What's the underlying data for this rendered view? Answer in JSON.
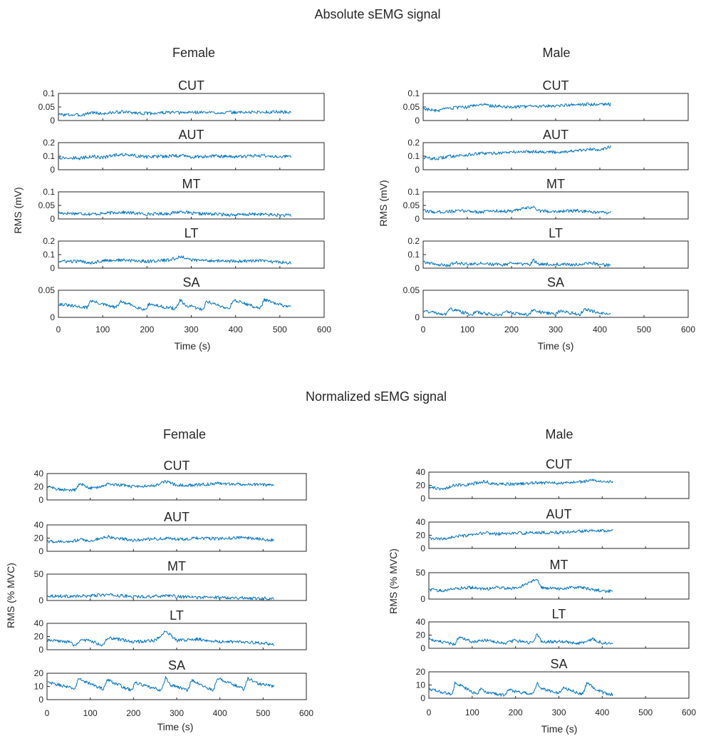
{
  "sections": [
    {
      "title": "Absolute sEMG signal",
      "ylabel": "RMS (mV)",
      "xlabel": "Time (s)",
      "xticks": [
        "0",
        "100",
        "200",
        "300",
        "400",
        "500",
        "600"
      ],
      "groups": [
        {
          "title": "Female",
          "panels": [
            {
              "title": "CUT",
              "yticks": [
                "0.1",
                "0.05",
                "0"
              ]
            },
            {
              "title": "AUT",
              "yticks": [
                "0.2",
                "0.1",
                "0"
              ]
            },
            {
              "title": "MT",
              "yticks": [
                "0.1",
                "0.05",
                "0"
              ]
            },
            {
              "title": "LT",
              "yticks": [
                "0.2",
                "0.1",
                "0"
              ]
            },
            {
              "title": "SA",
              "yticks": [
                "0.05",
                "0"
              ]
            }
          ]
        },
        {
          "title": "Male",
          "panels": [
            {
              "title": "CUT",
              "yticks": [
                "0.1",
                "0.05",
                "0"
              ]
            },
            {
              "title": "AUT",
              "yticks": [
                "0.2",
                "0.1",
                "0"
              ]
            },
            {
              "title": "MT",
              "yticks": [
                "0.1",
                "0.05",
                "0"
              ]
            },
            {
              "title": "LT",
              "yticks": [
                "0.2",
                "0.1",
                "0"
              ]
            },
            {
              "title": "SA",
              "yticks": [
                "0.05",
                "0"
              ]
            }
          ]
        }
      ]
    },
    {
      "title": "Normalized sEMG signal",
      "ylabel": "RMS (% MVC)",
      "xlabel": "Time (s)",
      "xticks": [
        "0",
        "100",
        "200",
        "300",
        "400",
        "500",
        "600"
      ],
      "groups": [
        {
          "title": "Female",
          "panels": [
            {
              "title": "CUT",
              "yticks": [
                "40",
                "20",
                "0"
              ]
            },
            {
              "title": "AUT",
              "yticks": [
                "40",
                "20",
                "0"
              ]
            },
            {
              "title": "MT",
              "yticks": [
                "50",
                "0"
              ]
            },
            {
              "title": "LT",
              "yticks": [
                "40",
                "20",
                "0"
              ]
            },
            {
              "title": "SA",
              "yticks": [
                "20",
                "10",
                "0"
              ]
            }
          ]
        },
        {
          "title": "Male",
          "panels": [
            {
              "title": "CUT",
              "yticks": [
                "40",
                "20",
                "0"
              ]
            },
            {
              "title": "AUT",
              "yticks": [
                "40",
                "20",
                "0"
              ]
            },
            {
              "title": "MT",
              "yticks": [
                "50",
                "0"
              ]
            },
            {
              "title": "LT",
              "yticks": [
                "40",
                "20",
                "0"
              ]
            },
            {
              "title": "SA",
              "yticks": [
                "20",
                "10",
                "0"
              ]
            }
          ]
        }
      ]
    }
  ],
  "chart_data": {
    "type": "line",
    "line_color": "#0072BD",
    "xlim": [
      0,
      600
    ],
    "subplots": [
      {
        "section": "Absolute sEMG signal",
        "group": "Female",
        "panel": "CUT",
        "ylim": [
          0,
          0.1
        ],
        "x": [
          0,
          50,
          75,
          100,
          140,
          200,
          250,
          280,
          300,
          350,
          400,
          450,
          500,
          525
        ],
        "y": [
          0.022,
          0.02,
          0.03,
          0.025,
          0.032,
          0.026,
          0.03,
          0.028,
          0.031,
          0.029,
          0.03,
          0.031,
          0.032,
          0.03
        ]
      },
      {
        "section": "Absolute sEMG signal",
        "group": "Female",
        "panel": "AUT",
        "ylim": [
          0,
          0.2
        ],
        "x": [
          0,
          50,
          75,
          100,
          140,
          200,
          250,
          280,
          300,
          350,
          400,
          450,
          500,
          525
        ],
        "y": [
          0.09,
          0.085,
          0.1,
          0.09,
          0.115,
          0.095,
          0.1,
          0.105,
          0.095,
          0.1,
          0.095,
          0.105,
          0.1,
          0.095
        ]
      },
      {
        "section": "Absolute sEMG signal",
        "group": "Female",
        "panel": "MT",
        "ylim": [
          0,
          0.1
        ],
        "x": [
          0,
          50,
          75,
          100,
          140,
          200,
          250,
          280,
          300,
          350,
          400,
          450,
          500,
          525
        ],
        "y": [
          0.022,
          0.02,
          0.018,
          0.02,
          0.025,
          0.018,
          0.02,
          0.028,
          0.02,
          0.018,
          0.015,
          0.018,
          0.014,
          0.013
        ]
      },
      {
        "section": "Absolute sEMG signal",
        "group": "Female",
        "panel": "LT",
        "ylim": [
          0,
          0.2
        ],
        "x": [
          0,
          50,
          75,
          100,
          140,
          200,
          250,
          280,
          300,
          350,
          400,
          450,
          500,
          525
        ],
        "y": [
          0.05,
          0.05,
          0.04,
          0.055,
          0.06,
          0.05,
          0.06,
          0.085,
          0.06,
          0.055,
          0.05,
          0.055,
          0.045,
          0.04
        ]
      },
      {
        "section": "Absolute sEMG signal",
        "group": "Female",
        "panel": "SA",
        "ylim": [
          0,
          0.05
        ],
        "x": [
          0,
          30,
          65,
          72,
          100,
          130,
          140,
          160,
          195,
          205,
          230,
          265,
          275,
          285,
          300,
          325,
          335,
          350,
          385,
          395,
          420,
          455,
          465,
          490,
          525
        ],
        "y": [
          0.025,
          0.021,
          0.018,
          0.031,
          0.024,
          0.018,
          0.029,
          0.024,
          0.014,
          0.025,
          0.02,
          0.016,
          0.032,
          0.022,
          0.02,
          0.014,
          0.03,
          0.025,
          0.016,
          0.032,
          0.026,
          0.016,
          0.033,
          0.025,
          0.019
        ]
      },
      {
        "section": "Absolute sEMG signal",
        "group": "Male",
        "panel": "CUT",
        "ylim": [
          0,
          0.1
        ],
        "x": [
          0,
          30,
          60,
          100,
          130,
          150,
          200,
          250,
          300,
          350,
          380,
          400,
          425
        ],
        "y": [
          0.045,
          0.035,
          0.045,
          0.05,
          0.06,
          0.055,
          0.05,
          0.052,
          0.055,
          0.058,
          0.06,
          0.062,
          0.06
        ]
      },
      {
        "section": "Absolute sEMG signal",
        "group": "Male",
        "panel": "AUT",
        "ylim": [
          0,
          0.2
        ],
        "x": [
          0,
          30,
          60,
          100,
          130,
          150,
          200,
          250,
          300,
          350,
          380,
          400,
          425
        ],
        "y": [
          0.09,
          0.08,
          0.1,
          0.11,
          0.12,
          0.12,
          0.13,
          0.135,
          0.13,
          0.14,
          0.15,
          0.15,
          0.17
        ]
      },
      {
        "section": "Absolute sEMG signal",
        "group": "Male",
        "panel": "MT",
        "ylim": [
          0,
          0.1
        ],
        "x": [
          0,
          30,
          60,
          100,
          130,
          150,
          200,
          250,
          260,
          300,
          350,
          380,
          400,
          425
        ],
        "y": [
          0.03,
          0.025,
          0.028,
          0.03,
          0.025,
          0.03,
          0.028,
          0.045,
          0.03,
          0.028,
          0.03,
          0.025,
          0.022,
          0.025
        ]
      },
      {
        "section": "Absolute sEMG signal",
        "group": "Male",
        "panel": "LT",
        "ylim": [
          0,
          0.2
        ],
        "x": [
          0,
          10,
          40,
          60,
          70,
          100,
          130,
          180,
          200,
          240,
          250,
          260,
          300,
          350,
          380,
          400,
          425
        ],
        "y": [
          0.05,
          0.04,
          0.025,
          0.02,
          0.04,
          0.03,
          0.035,
          0.025,
          0.035,
          0.025,
          0.06,
          0.03,
          0.03,
          0.025,
          0.04,
          0.025,
          0.02
        ]
      },
      {
        "section": "Absolute sEMG signal",
        "group": "Male",
        "panel": "SA",
        "ylim": [
          0,
          0.05
        ],
        "x": [
          0,
          50,
          55,
          60,
          110,
          120,
          130,
          175,
          185,
          200,
          240,
          250,
          260,
          300,
          310,
          355,
          365,
          380,
          410,
          425
        ],
        "y": [
          0.012,
          0.006,
          0.008,
          0.016,
          0.005,
          0.01,
          0.008,
          0.004,
          0.011,
          0.008,
          0.005,
          0.016,
          0.01,
          0.006,
          0.012,
          0.005,
          0.016,
          0.012,
          0.006,
          0.005
        ]
      },
      {
        "section": "Normalized sEMG signal",
        "group": "Female",
        "panel": "CUT",
        "ylim": [
          0,
          40
        ],
        "x": [
          0,
          40,
          65,
          75,
          100,
          130,
          140,
          200,
          250,
          275,
          300,
          350,
          400,
          450,
          500,
          525
        ],
        "y": [
          20,
          15,
          15,
          25,
          18,
          20,
          25,
          20,
          22,
          28,
          22,
          23,
          25,
          24,
          23,
          22
        ]
      },
      {
        "section": "Normalized sEMG signal",
        "group": "Female",
        "panel": "AUT",
        "ylim": [
          0,
          40
        ],
        "x": [
          0,
          50,
          75,
          100,
          140,
          200,
          250,
          280,
          300,
          350,
          400,
          450,
          500,
          525
        ],
        "y": [
          15,
          14,
          18,
          16,
          22,
          17,
          19,
          20,
          18,
          20,
          19,
          21,
          18,
          17
        ]
      },
      {
        "section": "Normalized sEMG signal",
        "group": "Female",
        "panel": "MT",
        "ylim": [
          0,
          50
        ],
        "x": [
          0,
          50,
          75,
          100,
          140,
          200,
          250,
          280,
          300,
          350,
          400,
          450,
          500,
          525
        ],
        "y": [
          9,
          8,
          8,
          9,
          11,
          7,
          8,
          10,
          7,
          6,
          6,
          5,
          4,
          4
        ]
      },
      {
        "section": "Normalized sEMG signal",
        "group": "Female",
        "panel": "LT",
        "ylim": [
          0,
          40
        ],
        "x": [
          0,
          50,
          65,
          75,
          100,
          130,
          140,
          200,
          250,
          275,
          300,
          350,
          400,
          450,
          500,
          525
        ],
        "y": [
          14,
          12,
          6,
          14,
          14,
          6,
          18,
          12,
          14,
          28,
          14,
          16,
          12,
          12,
          10,
          8
        ]
      },
      {
        "section": "Normalized sEMG signal",
        "group": "Female",
        "panel": "SA",
        "ylim": [
          0,
          20
        ],
        "x": [
          0,
          30,
          65,
          72,
          100,
          130,
          140,
          160,
          195,
          205,
          230,
          265,
          275,
          285,
          300,
          325,
          335,
          350,
          385,
          395,
          420,
          455,
          465,
          490,
          525
        ],
        "y": [
          13,
          11,
          8,
          16,
          12,
          8,
          15,
          12,
          7,
          13,
          10,
          7,
          17,
          11,
          10,
          7,
          15,
          12,
          7,
          16,
          13,
          8,
          16,
          12,
          10
        ]
      },
      {
        "section": "Normalized sEMG signal",
        "group": "Male",
        "panel": "CUT",
        "ylim": [
          0,
          40
        ],
        "x": [
          0,
          30,
          60,
          100,
          130,
          150,
          200,
          250,
          300,
          350,
          380,
          400,
          425
        ],
        "y": [
          18,
          14,
          20,
          22,
          26,
          22,
          22,
          24,
          23,
          25,
          28,
          27,
          25
        ]
      },
      {
        "section": "Normalized sEMG signal",
        "group": "Male",
        "panel": "AUT",
        "ylim": [
          0,
          40
        ],
        "x": [
          0,
          30,
          60,
          100,
          130,
          150,
          200,
          250,
          300,
          350,
          380,
          400,
          425
        ],
        "y": [
          15,
          14,
          18,
          20,
          24,
          22,
          23,
          24,
          24,
          26,
          28,
          27,
          28
        ]
      },
      {
        "section": "Normalized sEMG signal",
        "group": "Male",
        "panel": "MT",
        "ylim": [
          0,
          50
        ],
        "x": [
          0,
          30,
          60,
          100,
          130,
          150,
          200,
          250,
          260,
          300,
          350,
          380,
          400,
          425
        ],
        "y": [
          18,
          16,
          20,
          22,
          18,
          22,
          20,
          38,
          22,
          20,
          22,
          18,
          16,
          14
        ]
      },
      {
        "section": "Normalized sEMG signal",
        "group": "Male",
        "panel": "LT",
        "ylim": [
          0,
          40
        ],
        "x": [
          0,
          10,
          40,
          60,
          70,
          100,
          130,
          180,
          200,
          240,
          250,
          260,
          300,
          350,
          380,
          400,
          425
        ],
        "y": [
          16,
          12,
          8,
          6,
          18,
          10,
          12,
          8,
          12,
          8,
          22,
          10,
          10,
          8,
          14,
          8,
          6
        ]
      },
      {
        "section": "Normalized sEMG signal",
        "group": "Male",
        "panel": "SA",
        "ylim": [
          0,
          20
        ],
        "x": [
          0,
          50,
          55,
          60,
          110,
          120,
          130,
          175,
          185,
          200,
          240,
          250,
          260,
          300,
          310,
          355,
          365,
          380,
          410,
          425
        ],
        "y": [
          7,
          3,
          4,
          12,
          3,
          7,
          5,
          2,
          7,
          5,
          3,
          12,
          7,
          4,
          8,
          3,
          12,
          8,
          3,
          3
        ]
      }
    ]
  }
}
